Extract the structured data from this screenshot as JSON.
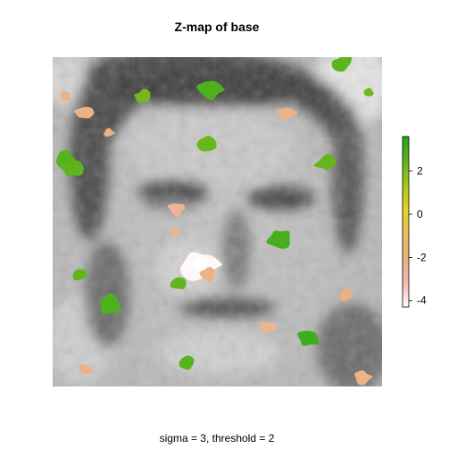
{
  "chart_data": {
    "type": "heatmap",
    "title": "Z-map of base",
    "caption": "sigma = 3, threshold = 2",
    "colorbar": {
      "range": [
        -4.3,
        3.6
      ],
      "ticks": [
        2,
        0,
        -2,
        -4
      ],
      "tick_labels": [
        "2",
        "0",
        "-2",
        "-4"
      ],
      "colors": [
        "#ffffff",
        "#f5b7b4",
        "#e9b27e",
        "#e7c05c",
        "#e3d51e",
        "#a8c91a",
        "#5fb41c",
        "#22a51c"
      ]
    },
    "background": {
      "image": "grayscale portrait (face)"
    },
    "threshold": 2,
    "sigma": 3,
    "clusters": [
      {
        "name": "cluster-positive",
        "z": 2.8,
        "cx": 0.48,
        "cy": 0.1
      },
      {
        "name": "cluster-positive",
        "z": 2.5,
        "cx": 0.88,
        "cy": 0.02
      },
      {
        "name": "cluster-positive",
        "z": 2.3,
        "cx": 0.47,
        "cy": 0.26
      },
      {
        "name": "cluster-positive",
        "z": 2.6,
        "cx": 0.04,
        "cy": 0.31
      },
      {
        "name": "cluster-positive",
        "z": 2.5,
        "cx": 0.06,
        "cy": 0.34
      },
      {
        "name": "cluster-positive",
        "z": 2.2,
        "cx": 0.27,
        "cy": 0.12
      },
      {
        "name": "cluster-positive",
        "z": 2.9,
        "cx": 0.69,
        "cy": 0.55
      },
      {
        "name": "cluster-positive",
        "z": 2.4,
        "cx": 0.08,
        "cy": 0.66
      },
      {
        "name": "cluster-positive",
        "z": 2.8,
        "cx": 0.17,
        "cy": 0.75
      },
      {
        "name": "cluster-positive",
        "z": 2.4,
        "cx": 0.38,
        "cy": 0.69
      },
      {
        "name": "cluster-positive",
        "z": 3.0,
        "cx": 0.78,
        "cy": 0.85
      },
      {
        "name": "cluster-positive",
        "z": 2.6,
        "cx": 0.41,
        "cy": 0.93
      },
      {
        "name": "cluster-positive",
        "z": 2.2,
        "cx": 0.96,
        "cy": 0.11
      },
      {
        "name": "cluster-positive",
        "z": 2.4,
        "cx": 0.83,
        "cy": 0.32
      },
      {
        "name": "cluster-negative",
        "z": -2.5,
        "cx": 0.38,
        "cy": 0.46
      },
      {
        "name": "cluster-negative",
        "z": -2.4,
        "cx": 0.37,
        "cy": 0.53
      },
      {
        "name": "cluster-negative",
        "z": -4.2,
        "cx": 0.45,
        "cy": 0.63
      },
      {
        "name": "cluster-negative",
        "z": -2.3,
        "cx": 0.71,
        "cy": 0.17
      },
      {
        "name": "cluster-negative",
        "z": -2.2,
        "cx": 0.09,
        "cy": 0.17
      },
      {
        "name": "cluster-negative",
        "z": -2.4,
        "cx": 0.65,
        "cy": 0.82
      },
      {
        "name": "cluster-negative",
        "z": -2.3,
        "cx": 0.1,
        "cy": 0.95
      },
      {
        "name": "cluster-negative",
        "z": -2.2,
        "cx": 0.94,
        "cy": 0.97
      },
      {
        "name": "cluster-negative",
        "z": -2.1,
        "cx": 0.89,
        "cy": 0.72
      },
      {
        "name": "cluster-negative",
        "z": -2.2,
        "cx": 0.04,
        "cy": 0.12
      },
      {
        "name": "cluster-negative",
        "z": -2.1,
        "cx": 0.17,
        "cy": 0.23
      },
      {
        "name": "cluster-negative",
        "z": -2.2,
        "cx": 0.47,
        "cy": 0.66
      }
    ]
  }
}
